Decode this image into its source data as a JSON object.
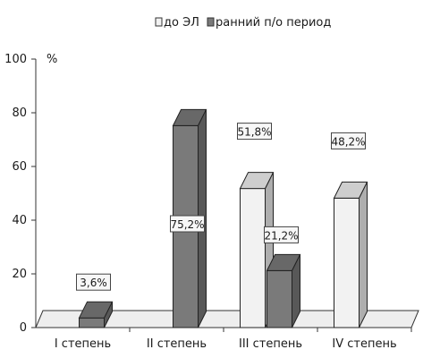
{
  "chart_data": {
    "type": "bar",
    "categories": [
      "I степень",
      "II степень",
      "III степень",
      "IV степень"
    ],
    "series": [
      {
        "name": "до ЭЛ",
        "color": "#f2f2f2",
        "values": [
          null,
          null,
          51.8,
          48.2
        ]
      },
      {
        "name": "ранний п/о период",
        "color": "#7a7a7a",
        "values": [
          3.6,
          75.2,
          21.2,
          null
        ]
      }
    ],
    "data_labels": [
      {
        "category": "I степень",
        "series": "ранний п/о период",
        "text": "3,6%"
      },
      {
        "category": "II степень",
        "series": "ранний п/о период",
        "text": "75,2%"
      },
      {
        "category": "III степень",
        "series": "до ЭЛ",
        "text": "51,8%"
      },
      {
        "category": "III степень",
        "series": "ранний п/о период",
        "text": "21,2%"
      },
      {
        "category": "IV степень",
        "series": "до ЭЛ",
        "text": "48,2%"
      }
    ],
    "y_ticks": [
      "0",
      "20",
      "40",
      "60",
      "80",
      "100"
    ],
    "ylim": [
      0,
      100
    ],
    "y_unit": "%",
    "legend_position": "top",
    "style": "3d-bar",
    "grid": false
  }
}
